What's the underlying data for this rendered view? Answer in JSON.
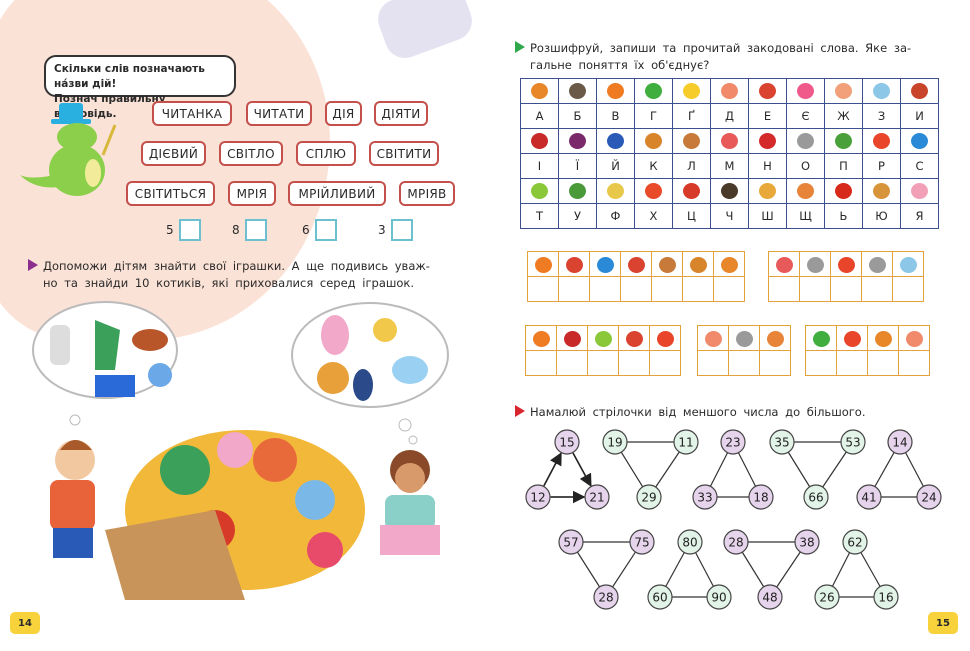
{
  "left_page": {
    "bubble_lines": [
      "Скільки слів позначають на́зви дій!",
      "Познач правильну відповідь."
    ],
    "words": [
      [
        "ЧИТАНКА",
        "ЧИТАТИ",
        "ДІЯ",
        "ДІЯТИ"
      ],
      [
        "ДІЄВИЙ",
        "СВІТЛО",
        "СПЛЮ",
        "СВІТИТИ"
      ],
      [
        "СВІТИТЬСЯ",
        "МРІЯ",
        "МРІЙЛИВИЙ",
        "МРІЯВ"
      ]
    ],
    "answers": [
      "5",
      "8",
      "6",
      "3"
    ],
    "task2_lines": [
      "Допоможи дітям знайти свої іграшки. А ще подивись уваж-",
      "но та знайди 10 котиків, які приховалися серед іграшок."
    ],
    "page_number": "14"
  },
  "right_page": {
    "task1_lines": [
      "Розшифруй, запиши та прочитай закодовані слова. Яке за-",
      "гальне поняття їх об'єднує?"
    ],
    "cipher": [
      [
        [
          "apple",
          "#e8862a",
          "А"
        ],
        [
          "ant",
          "#6b5a48",
          "Б"
        ],
        [
          "carrot",
          "#ef7b22",
          "В"
        ],
        [
          "frog",
          "#3fae3f",
          "Г"
        ],
        [
          "cheese",
          "#f6cc2a",
          "Ґ"
        ],
        [
          "fish",
          "#f08a6a",
          "Д"
        ],
        [
          "roller-skate",
          "#d9432f",
          "Е"
        ],
        [
          "donut",
          "#f05a8a",
          "Є"
        ],
        [
          "ice-cream",
          "#f2a07a",
          "Ж"
        ],
        [
          "aquarium",
          "#8cc7e8",
          "З"
        ],
        [
          "jar",
          "#c8452c",
          "И"
        ]
      ],
      [
        [
          "ladybug",
          "#c82a2a",
          "І"
        ],
        [
          "plum",
          "#7a2a6a",
          "Ї"
        ],
        [
          "kettle",
          "#2a5ab8",
          "Й"
        ],
        [
          "croissant",
          "#d8842a",
          "К"
        ],
        [
          "guitar",
          "#c87a3a",
          "Л"
        ],
        [
          "parrot",
          "#e85a5a",
          "М"
        ],
        [
          "pot",
          "#d42a2a",
          "Н"
        ],
        [
          "mouse",
          "#9a9a9a",
          "О"
        ],
        [
          "tree",
          "#4aa03a",
          "П"
        ],
        [
          "umbrella",
          "#e8452a",
          "Р"
        ],
        [
          "hat",
          "#2a8ad8",
          "С"
        ]
      ],
      [
        [
          "zucchini",
          "#8ac83a",
          "Т"
        ],
        [
          "palm-tree",
          "#4a9a3a",
          "У"
        ],
        [
          "ship",
          "#e8c84a",
          "Ф"
        ],
        [
          "ball",
          "#e84a2a",
          "Х"
        ],
        [
          "cap",
          "#d83a2a",
          "Ц"
        ],
        [
          "hedgehog",
          "#4a3a2a",
          "Ч"
        ],
        [
          "racket",
          "#e8a83a",
          "Ш"
        ],
        [
          "squirrel",
          "#e8843a",
          "Щ"
        ],
        [
          "tomato",
          "#d82a1a",
          "Ь"
        ],
        [
          "palette",
          "#d8943a",
          "Ю"
        ],
        [
          "pig",
          "#f2a0b8",
          "Я"
        ]
      ]
    ],
    "groups": [
      [
        [
          "carrot",
          "#ef7b22"
        ],
        [
          "roller-skate",
          "#d9432f"
        ],
        [
          "hat",
          "#2a8ad8"
        ],
        [
          "roller-skate",
          "#d9432f"
        ],
        [
          "guitar",
          "#c87a3a"
        ],
        [
          "croissant",
          "#d8842a"
        ],
        [
          "apple",
          "#e8862a"
        ]
      ],
      [
        [
          "parrot",
          "#e85a5a"
        ],
        [
          "mouse",
          "#9a9a9a"
        ],
        [
          "umbrella",
          "#e8452a"
        ],
        [
          "mouse",
          "#9a9a9a"
        ],
        [
          "aquarium",
          "#8cc7e8"
        ]
      ],
      [
        [
          "carrot",
          "#ef7b22"
        ],
        [
          "ladybug",
          "#c82a2a"
        ],
        [
          "zucchini",
          "#8ac83a"
        ],
        [
          "roller-skate",
          "#d9432f"
        ],
        [
          "umbrella",
          "#e8452a"
        ]
      ],
      [
        [
          "fish",
          "#f08a6a"
        ],
        [
          "mouse",
          "#9a9a9a"
        ],
        [
          "squirrel",
          "#e8843a"
        ]
      ],
      [
        [
          "frog",
          "#3fae3f"
        ],
        [
          "umbrella",
          "#e8452a"
        ],
        [
          "apple",
          "#e8862a"
        ],
        [
          "fish",
          "#f08a6a"
        ]
      ]
    ],
    "task2_text": "Намалюй стрілочки від меншого числа до більшого.",
    "triangles": [
      {
        "nums": [
          "15",
          "12",
          "21"
        ],
        "color": "purple"
      },
      {
        "nums": [
          "19",
          "11",
          "29"
        ],
        "color": "green"
      },
      {
        "nums": [
          "23",
          "33",
          "18"
        ],
        "color": "purple"
      },
      {
        "nums": [
          "35",
          "53",
          "66"
        ],
        "color": "green"
      },
      {
        "nums": [
          "14",
          "41",
          "24"
        ],
        "color": "purple"
      },
      {
        "nums": [
          "57",
          "75",
          "28"
        ],
        "color": "purple"
      },
      {
        "nums": [
          "80",
          "60",
          "90"
        ],
        "color": "green"
      },
      {
        "nums": [
          "28",
          "38",
          "48"
        ],
        "color": "purple"
      },
      {
        "nums": [
          "62",
          "26",
          "16"
        ],
        "color": "green"
      }
    ],
    "page_number": "15"
  },
  "colors": {
    "tile_border": "#c4504c",
    "answer_box": "#6cc0cf",
    "task_purple": "#8b2f8f",
    "task_green": "#2ea84a",
    "task_red": "#d9262e",
    "table_border": "#3c4f8f",
    "group_border": "#e6a23a",
    "circle_purple": "#e6d3ec",
    "circle_green": "#e2f3e8"
  }
}
